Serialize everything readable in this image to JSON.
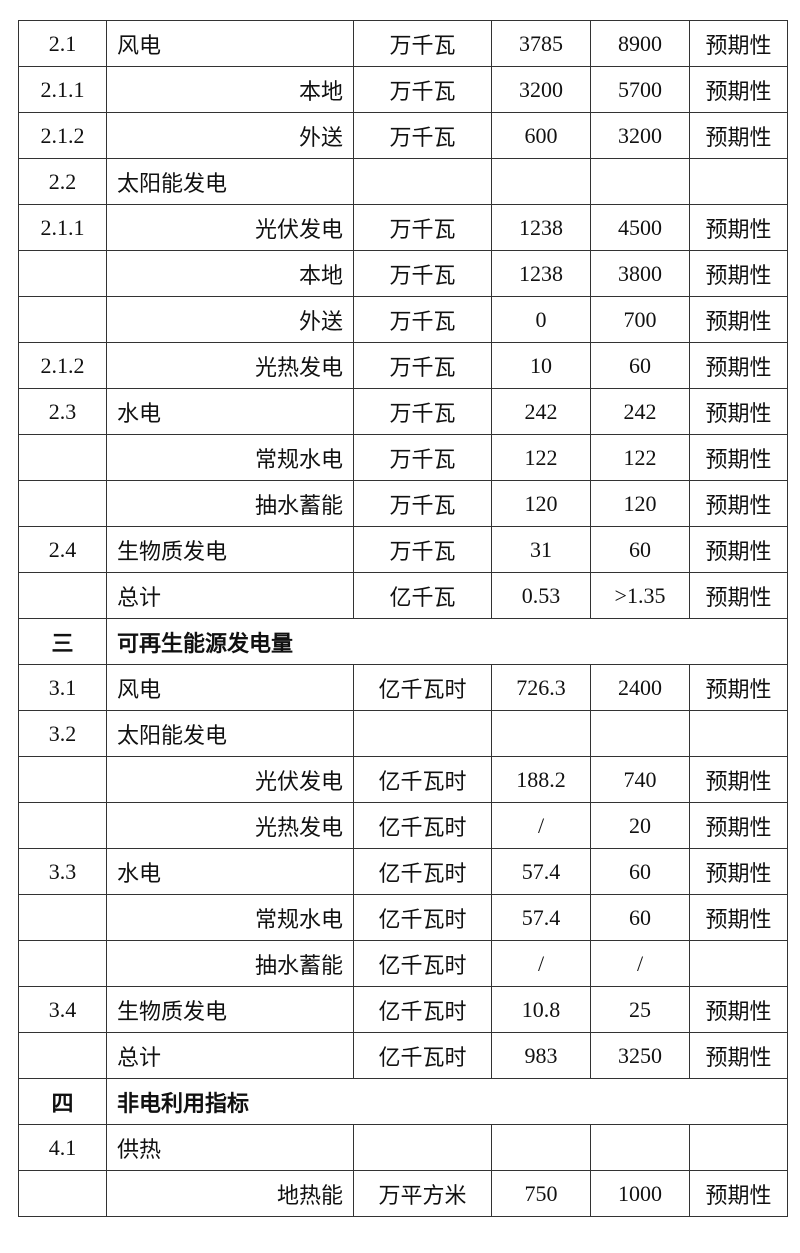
{
  "table": {
    "rows": [
      {
        "code": "2.1",
        "name": "风电",
        "align": "left",
        "unit": "万千瓦",
        "current": "3785",
        "target": "8900",
        "nature": "预期性"
      },
      {
        "code": "2.1.1",
        "name": "本地",
        "align": "right",
        "unit": "万千瓦",
        "current": "3200",
        "target": "5700",
        "nature": "预期性"
      },
      {
        "code": "2.1.2",
        "name": "外送",
        "align": "right",
        "unit": "万千瓦",
        "current": "600",
        "target": "3200",
        "nature": "预期性"
      },
      {
        "code": "2.2",
        "name": "太阳能发电",
        "align": "left",
        "unit": "",
        "current": "",
        "target": "",
        "nature": ""
      },
      {
        "code": "2.1.1",
        "name": "光伏发电",
        "align": "right",
        "unit": "万千瓦",
        "current": "1238",
        "target": "4500",
        "nature": "预期性"
      },
      {
        "code": "",
        "name": "本地",
        "align": "right",
        "unit": "万千瓦",
        "current": "1238",
        "target": "3800",
        "nature": "预期性"
      },
      {
        "code": "",
        "name": "外送",
        "align": "right",
        "unit": "万千瓦",
        "current": "0",
        "target": "700",
        "nature": "预期性"
      },
      {
        "code": "2.1.2",
        "name": "光热发电",
        "align": "right",
        "unit": "万千瓦",
        "current": "10",
        "target": "60",
        "nature": "预期性"
      },
      {
        "code": "2.3",
        "name": "水电",
        "align": "left",
        "unit": "万千瓦",
        "current": "242",
        "target": "242",
        "nature": "预期性"
      },
      {
        "code": "",
        "name": "常规水电",
        "align": "right",
        "unit": "万千瓦",
        "current": "122",
        "target": "122",
        "nature": "预期性"
      },
      {
        "code": "",
        "name": "抽水蓄能",
        "align": "right",
        "unit": "万千瓦",
        "current": "120",
        "target": "120",
        "nature": "预期性"
      },
      {
        "code": "2.4",
        "name": "生物质发电",
        "align": "left",
        "unit": "万千瓦",
        "current": "31",
        "target": "60",
        "nature": "预期性"
      },
      {
        "code": "",
        "name": "总计",
        "align": "left",
        "unit": "亿千瓦",
        "current": "0.53",
        "target": ">1.35",
        "nature": "预期性"
      },
      {
        "section": true,
        "code": "三",
        "name": "可再生能源发电量"
      },
      {
        "code": "3.1",
        "name": "风电",
        "align": "left",
        "unit": "亿千瓦时",
        "current": "726.3",
        "target": "2400",
        "nature": "预期性"
      },
      {
        "code": "3.2",
        "name": "太阳能发电",
        "align": "left",
        "unit": "",
        "current": "",
        "target": "",
        "nature": ""
      },
      {
        "code": "",
        "name": "光伏发电",
        "align": "right",
        "unit": "亿千瓦时",
        "current": "188.2",
        "target": "740",
        "nature": "预期性"
      },
      {
        "code": "",
        "name": "光热发电",
        "align": "right",
        "unit": "亿千瓦时",
        "current": "/",
        "target": "20",
        "nature": "预期性"
      },
      {
        "code": "3.3",
        "name": "水电",
        "align": "left",
        "unit": "亿千瓦时",
        "current": "57.4",
        "target": "60",
        "nature": "预期性"
      },
      {
        "code": "",
        "name": "常规水电",
        "align": "right",
        "unit": "亿千瓦时",
        "current": "57.4",
        "target": "60",
        "nature": "预期性"
      },
      {
        "code": "",
        "name": "抽水蓄能",
        "align": "right",
        "unit": "亿千瓦时",
        "current": "/",
        "target": "/",
        "nature": ""
      },
      {
        "code": "3.4",
        "name": "生物质发电",
        "align": "left",
        "unit": "亿千瓦时",
        "current": "10.8",
        "target": "25",
        "nature": "预期性"
      },
      {
        "code": "",
        "name": "总计",
        "align": "left",
        "unit": "亿千瓦时",
        "current": "983",
        "target": "3250",
        "nature": "预期性"
      },
      {
        "section": true,
        "code": "四",
        "name": "非电利用指标"
      },
      {
        "code": "4.1",
        "name": "供热",
        "align": "left",
        "unit": "",
        "current": "",
        "target": "",
        "nature": ""
      },
      {
        "code": "",
        "name": "地热能",
        "align": "right",
        "unit": "万平方米",
        "current": "750",
        "target": "1000",
        "nature": "预期性"
      }
    ]
  }
}
